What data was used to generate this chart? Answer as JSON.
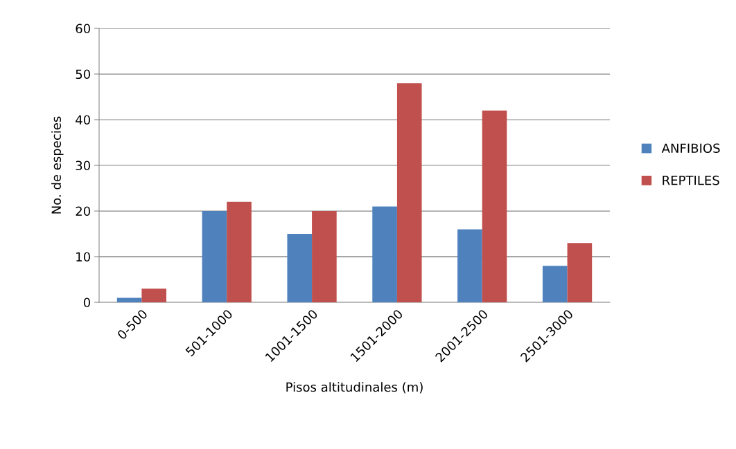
{
  "chart_data": {
    "type": "bar",
    "xlabel": "Pisos altitudinales (m)",
    "ylabel": "No. de especies",
    "categories": [
      "0-500",
      "501-1000",
      "1001-1500",
      "1501-2000",
      "2001-2500",
      "2501-3000"
    ],
    "series": [
      {
        "name": "ANFIBIOS",
        "color": "#4f81bd",
        "values": [
          1,
          20,
          15,
          21,
          16,
          8
        ]
      },
      {
        "name": "REPTILES",
        "color": "#c0504d",
        "values": [
          3,
          22,
          20,
          48,
          42,
          13
        ]
      }
    ],
    "ylim": [
      0,
      60
    ],
    "yticks": [
      0,
      10,
      20,
      30,
      40,
      50,
      60
    ],
    "grid": "y",
    "legend": "right"
  }
}
